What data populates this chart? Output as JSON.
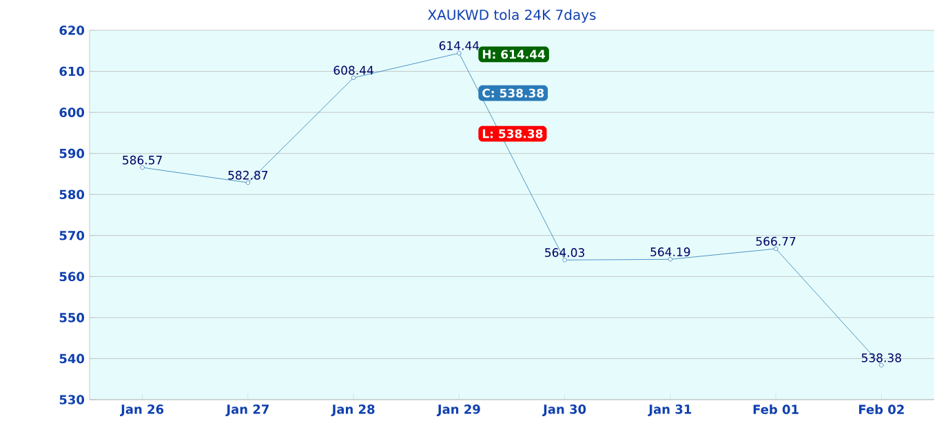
{
  "chart_data": {
    "type": "line",
    "title": "XAUKWD tola 24K 7days",
    "categories": [
      "Jan 26",
      "Jan 27",
      "Jan 28",
      "Jan 29",
      "Jan 30",
      "Jan 31",
      "Feb 01",
      "Feb 02"
    ],
    "values": [
      586.57,
      582.87,
      608.44,
      614.44,
      564.03,
      564.19,
      566.77,
      538.38
    ],
    "color": "#2a7ab8",
    "marker": "circle",
    "data_labels": true,
    "grid": "y",
    "ylim": [
      530,
      620
    ],
    "yticks": [
      530,
      540,
      550,
      560,
      570,
      580,
      590,
      600,
      610,
      620
    ],
    "annotations": [
      "H: 614.44",
      "C: 538.38",
      "L: 538.38"
    ]
  }
}
